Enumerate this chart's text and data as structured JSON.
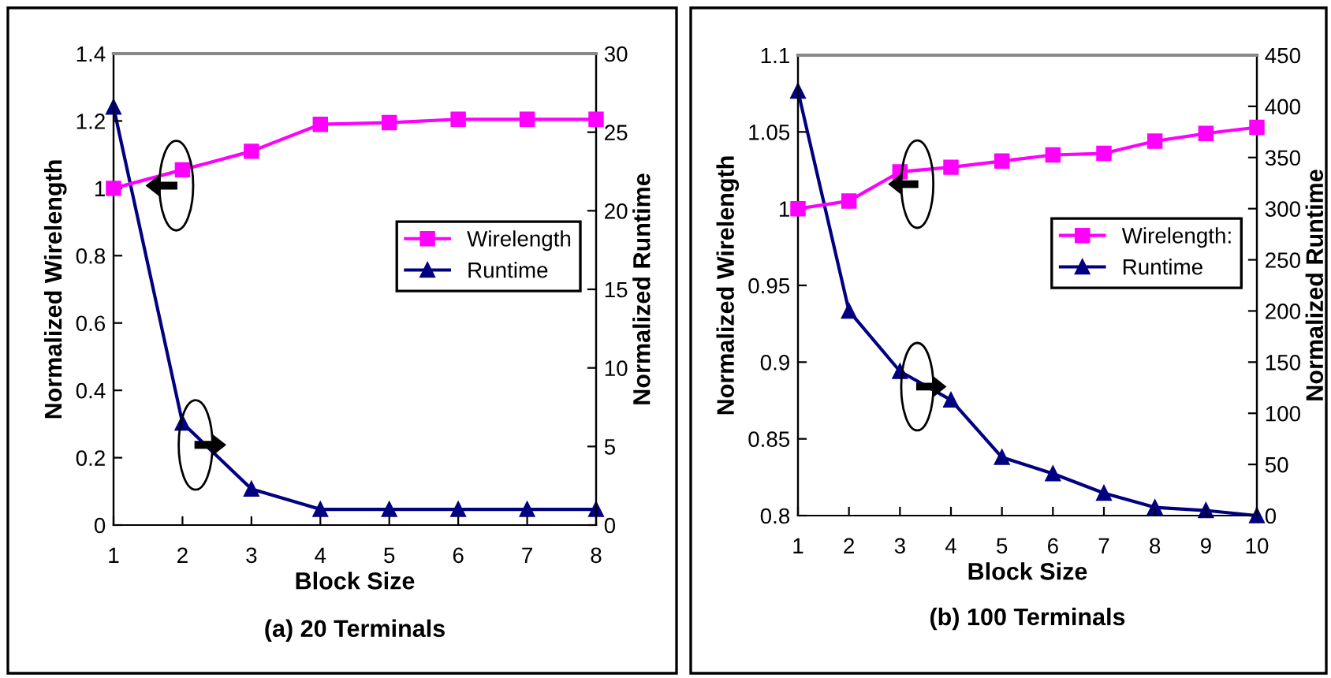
{
  "chart_data": [
    {
      "type": "line",
      "title": "(a) 20 Terminals",
      "xlabel": "Block Size",
      "ylabel": "Normalized Wirelength",
      "y2label": "Normalized Runtime",
      "categories": [
        "1",
        "2",
        "3",
        "4",
        "5",
        "6",
        "7",
        "8"
      ],
      "series": [
        {
          "name": "Wirelength",
          "color": "#ff00ff",
          "marker": "square",
          "values": [
            1.0,
            1.055,
            1.11,
            1.19,
            1.195,
            1.205,
            1.205,
            1.205
          ]
        },
        {
          "name": "Runtime",
          "color": "#000080",
          "marker": "triangle",
          "axis": "y2",
          "values": [
            26.6,
            6.5,
            2.3,
            1,
            1,
            1,
            1,
            1
          ]
        }
      ],
      "ylim": [
        0,
        1.4
      ],
      "yticks": [
        0,
        0.2,
        0.4,
        0.6,
        0.8,
        1,
        1.2,
        1.4
      ],
      "y2lim": [
        0,
        30
      ],
      "y2ticks": [
        0,
        5,
        10,
        15,
        20,
        25,
        30
      ],
      "legend": "right",
      "grid": false,
      "line_style": "solid"
    },
    {
      "type": "line",
      "title": "(b) 100 Terminals",
      "xlabel": "Block Size",
      "ylabel": "Normalized Wirelength",
      "y2label": "Normalized Runtime",
      "categories": [
        "1",
        "2",
        "3",
        "4",
        "5",
        "6",
        "7",
        "8",
        "9",
        "10"
      ],
      "series": [
        {
          "name": "Wirelength:",
          "color": "#ff00ff",
          "marker": "square",
          "values": [
            1.0,
            1.005,
            1.024,
            1.027,
            1.031,
            1.035,
            1.036,
            1.044,
            1.049,
            1.053
          ]
        },
        {
          "name": "Runtime",
          "color": "#000080",
          "marker": "triangle",
          "axis": "y2",
          "values": [
            415,
            200,
            141,
            113,
            57,
            41,
            22,
            8,
            5,
            0
          ]
        }
      ],
      "ylim": [
        0.8,
        1.1
      ],
      "yticks": [
        0.8,
        0.85,
        0.9,
        0.95,
        1,
        1.05,
        1.1
      ],
      "y2lim": [
        0,
        450
      ],
      "y2ticks": [
        0,
        50,
        100,
        150,
        200,
        250,
        300,
        350,
        400,
        450
      ],
      "legend": "right",
      "grid": false,
      "line_style": "solid"
    }
  ]
}
